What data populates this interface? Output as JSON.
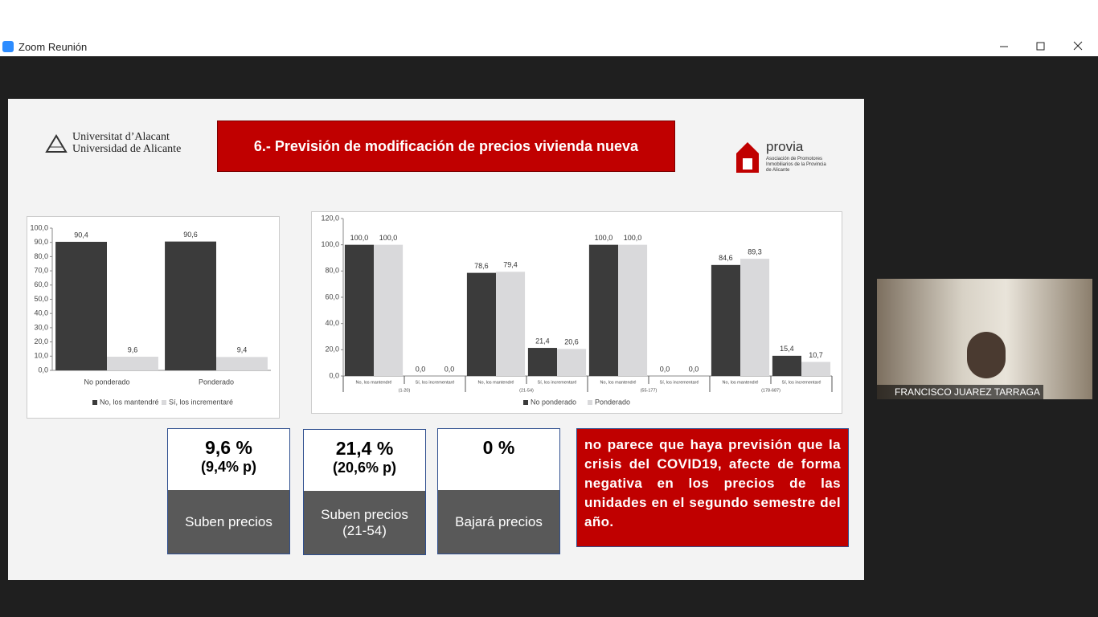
{
  "window": {
    "title": "Zoom Reunión"
  },
  "slide": {
    "university": [
      "Universitat d’Alacant",
      "Universidad de Alicante"
    ],
    "title": "6.- Previsión de modificación de precios vivienda nueva",
    "brand": "provia",
    "brand_subtitle": "Asociación de Promotores Inmobiliarios de la Provincia de Alicante"
  },
  "chart_data": [
    {
      "type": "bar",
      "categories": [
        "No ponderado",
        "Ponderado"
      ],
      "series": [
        {
          "name": "No, los mantendré",
          "color": "#3b3b3b",
          "values": [
            90.4,
            90.6
          ],
          "value_labels": [
            "90,4",
            "90,6"
          ]
        },
        {
          "name": "Sí, los incrementaré",
          "color": "#d9d9db",
          "values": [
            9.6,
            9.4
          ],
          "value_labels": [
            "9,6",
            "9,4"
          ]
        }
      ],
      "ylim": [
        0,
        100
      ],
      "yticks": [
        {
          "value": 0,
          "label": "0,0"
        },
        {
          "value": 10,
          "label": "10,0"
        },
        {
          "value": 20,
          "label": "20,0"
        },
        {
          "value": 30,
          "label": "30,0"
        },
        {
          "value": 40,
          "label": "40,0"
        },
        {
          "value": 50,
          "label": "50,0"
        },
        {
          "value": 60,
          "label": "60,0"
        },
        {
          "value": 70,
          "label": "70,0"
        },
        {
          "value": 80,
          "label": "80,0"
        },
        {
          "value": 90,
          "label": "90,0"
        },
        {
          "value": 100,
          "label": "100,0"
        }
      ],
      "legend": "bottom"
    },
    {
      "type": "bar",
      "categories": [
        "No, los mantendré",
        "Sí, los incrementaré",
        "No, los mantendré",
        "Sí, los incrementaré",
        "No, los mantendré",
        "Sí, los incrementaré",
        "No, los mantendré",
        "Sí, los incrementaré"
      ],
      "groups": [
        "(1-20)",
        "(21-54)",
        "(55-177)",
        "(178-687)"
      ],
      "series": [
        {
          "name": "No ponderado",
          "color": "#3b3b3b",
          "values": [
            100,
            0,
            78.6,
            21.4,
            100,
            0,
            84.6,
            15.4
          ],
          "value_labels": [
            "100,0",
            "0,0",
            "78,6",
            "21,4",
            "100,0",
            "0,0",
            "84,6",
            "15,4"
          ]
        },
        {
          "name": "Ponderado",
          "color": "#d9d9db",
          "values": [
            100,
            0,
            79.4,
            20.6,
            100,
            0,
            89.3,
            10.7
          ],
          "value_labels": [
            "100,0",
            "0,0",
            "79,4",
            "20,6",
            "100,0",
            "0,0",
            "89,3",
            "10,7"
          ]
        }
      ],
      "ylim": [
        0,
        120
      ],
      "yticks": [
        {
          "value": 0,
          "label": "0,0"
        },
        {
          "value": 20,
          "label": "20,0"
        },
        {
          "value": 40,
          "label": "40,0"
        },
        {
          "value": 60,
          "label": "60,0"
        },
        {
          "value": 80,
          "label": "80,0"
        },
        {
          "value": 100,
          "label": "100,0"
        },
        {
          "value": 120,
          "label": "120,0"
        }
      ],
      "legend": "bottom"
    }
  ],
  "boxes": [
    {
      "value": "9,6 %",
      "weighted": "(9,4% p)",
      "label": "Suben precios"
    },
    {
      "value": "21,4 %",
      "weighted": "(20,6% p)",
      "label": "Suben precios (21-54)"
    },
    {
      "value": "0 %",
      "label": "Bajará precios"
    }
  ],
  "conclusion": "no parece que haya previsión que la crisis del COVID19, afecte de forma negativa en los precios de las unidades en el segundo semestre del año.",
  "participant": {
    "name": "FRANCISCO JUAREZ TARRAGA"
  }
}
